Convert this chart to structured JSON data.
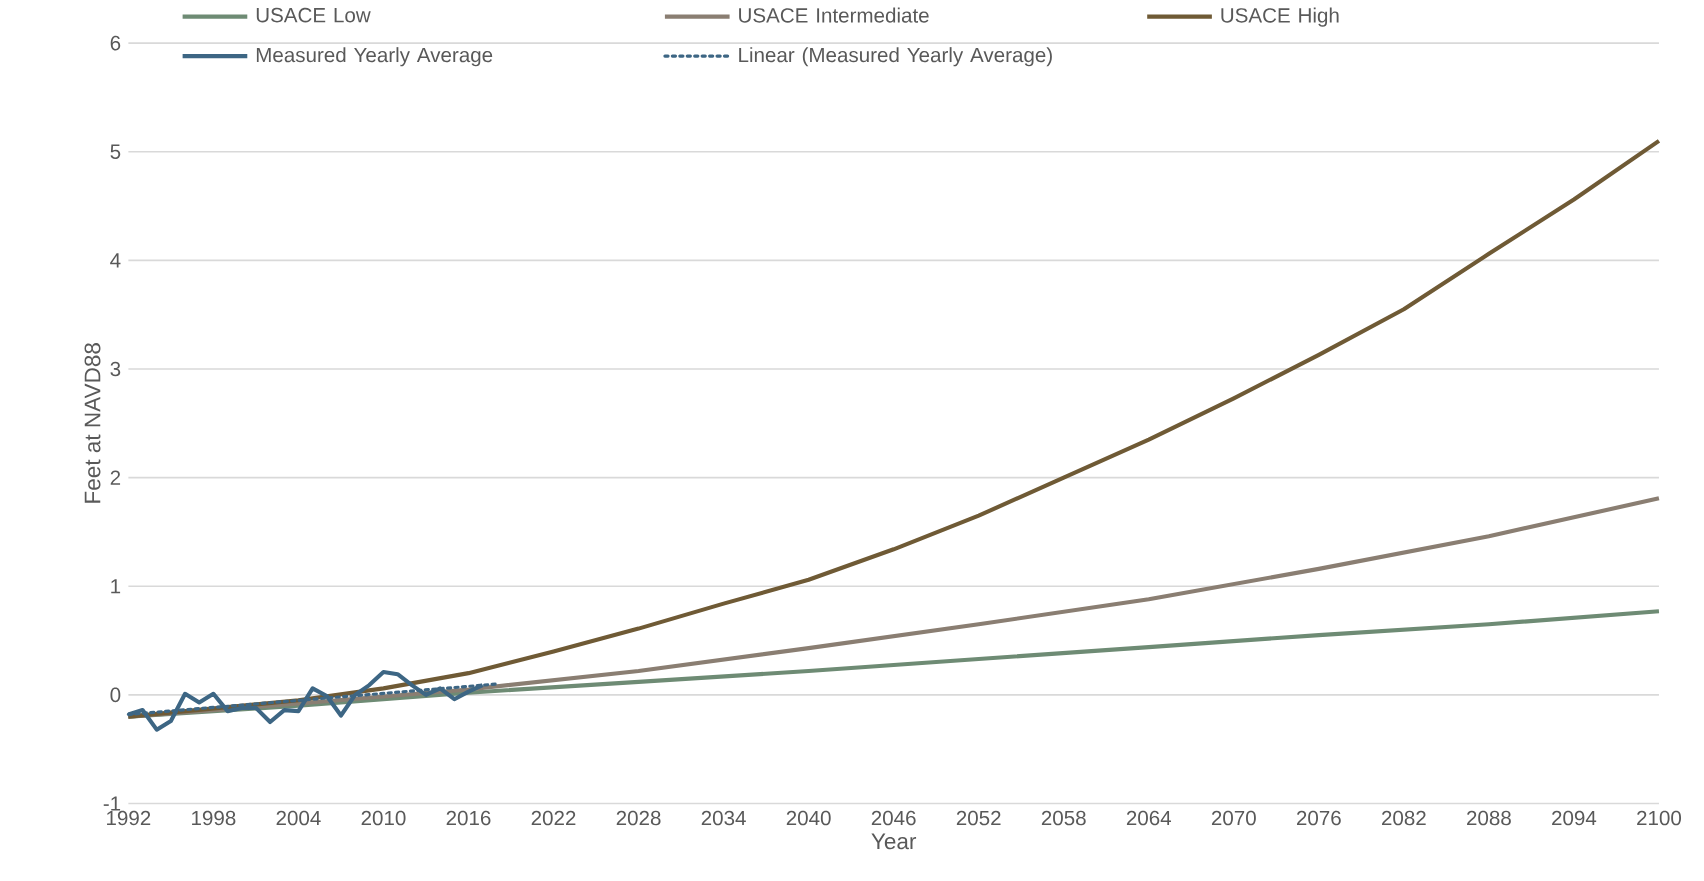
{
  "chart_data": {
    "type": "line",
    "xlabel": "Year",
    "ylabel": "Feet at NAVD88",
    "xlim": [
      1992,
      2100
    ],
    "ylim": [
      -1,
      6
    ],
    "xticks": [
      1992,
      1998,
      2004,
      2010,
      2016,
      2022,
      2028,
      2034,
      2040,
      2046,
      2052,
      2058,
      2064,
      2070,
      2076,
      2082,
      2088,
      2094,
      2100
    ],
    "yticks": [
      -1,
      0,
      1,
      2,
      3,
      4,
      5,
      6
    ],
    "grid": "y",
    "legend": "top",
    "marker": "none",
    "series": [
      {
        "name": "USACE Low",
        "color": "#6e8b74",
        "x": [
          1992,
          2004,
          2016,
          2028,
          2040,
          2052,
          2064,
          2076,
          2088,
          2100
        ],
        "values": [
          -0.2,
          -0.1,
          0.02,
          0.12,
          0.22,
          0.33,
          0.44,
          0.55,
          0.65,
          0.77
        ]
      },
      {
        "name": "USACE Intermediate",
        "color": "#8a7e72",
        "x": [
          1992,
          2004,
          2016,
          2028,
          2040,
          2052,
          2064,
          2076,
          2088,
          2100
        ],
        "values": [
          -0.2,
          -0.08,
          0.05,
          0.22,
          0.43,
          0.65,
          0.88,
          1.16,
          1.46,
          1.81
        ]
      },
      {
        "name": "USACE High",
        "color": "#6f5a35",
        "x": [
          1992,
          2004,
          2010,
          2016,
          2022,
          2028,
          2034,
          2040,
          2046,
          2052,
          2058,
          2064,
          2070,
          2076,
          2082,
          2088,
          2094,
          2100
        ],
        "values": [
          -0.2,
          -0.05,
          0.06,
          0.2,
          0.4,
          0.61,
          0.84,
          1.06,
          1.34,
          1.65,
          2.0,
          2.35,
          2.73,
          3.13,
          3.55,
          4.06,
          4.56,
          5.1
        ]
      },
      {
        "name": "Measured Yearly Average",
        "color": "#3d6684",
        "x": [
          1992,
          1993,
          1994,
          1995,
          1996,
          1997,
          1998,
          1999,
          2000,
          2001,
          2002,
          2003,
          2004,
          2005,
          2006,
          2007,
          2008,
          2009,
          2010,
          2011,
          2012,
          2013,
          2014,
          2015,
          2016,
          2017
        ],
        "values": [
          -0.18,
          -0.14,
          -0.32,
          -0.24,
          0.01,
          -0.07,
          0.01,
          -0.15,
          -0.12,
          -0.12,
          -0.25,
          -0.14,
          -0.15,
          0.06,
          -0.01,
          -0.19,
          0.0,
          0.09,
          0.21,
          0.19,
          0.09,
          0.0,
          0.06,
          -0.04,
          0.03,
          0.09
        ]
      },
      {
        "name": "Linear (Measured Yearly Average)",
        "color": "#3d6684",
        "line_style": "dotted",
        "x": [
          1992,
          2018
        ],
        "values": [
          -0.18,
          0.1
        ]
      }
    ]
  }
}
